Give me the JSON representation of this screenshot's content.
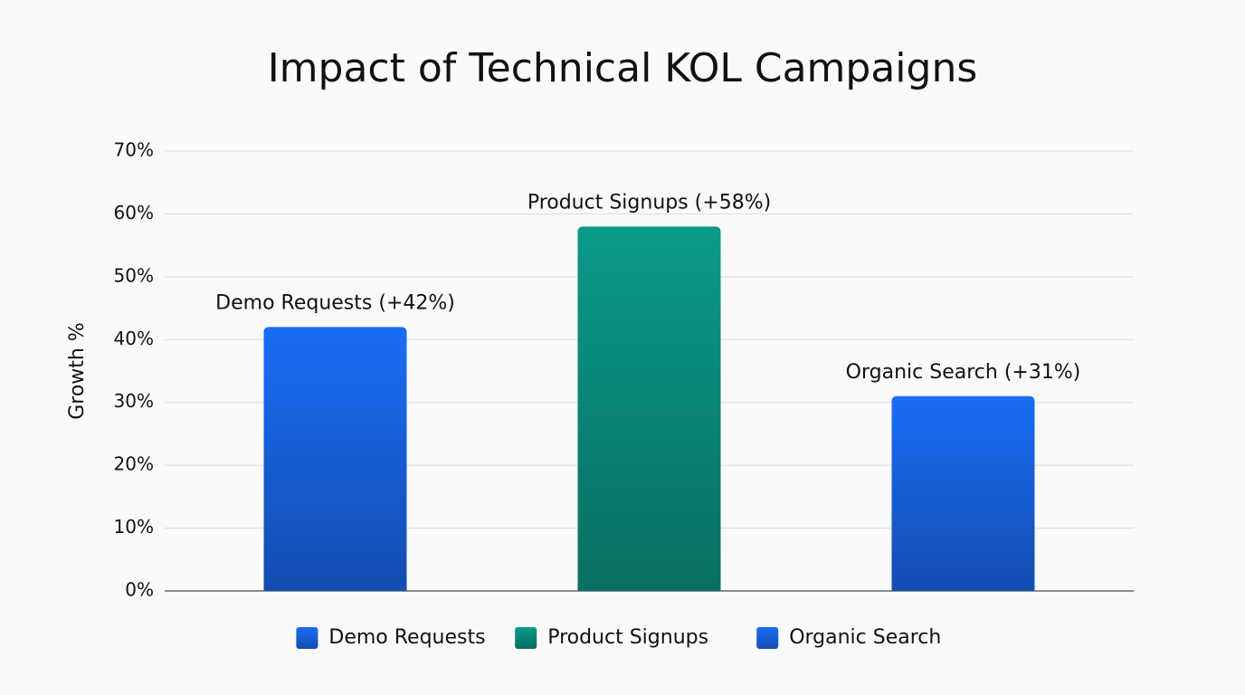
{
  "chart_data": {
    "type": "bar",
    "title": "Impact of Technical KOL Campaigns",
    "y_label": "Growth %",
    "categories": [
      "Demo Requests",
      "Product Signups",
      "Organic Search"
    ],
    "values": [
      42,
      58,
      31
    ],
    "value_labels": [
      "Demo Requests (+42%)",
      "Product Signups (+58%)",
      "Organic Search (+31%)"
    ],
    "colors": [
      "#1a6cf5",
      "#0a9a88",
      "#1a6cf5"
    ],
    "ylim": [
      0,
      70
    ],
    "yticks": [
      {
        "value": 0,
        "label": "0%"
      },
      {
        "value": 10,
        "label": "10%"
      },
      {
        "value": 20,
        "label": "20%"
      },
      {
        "value": 30,
        "label": "30%"
      },
      {
        "value": 40,
        "label": "40%"
      },
      {
        "value": 50,
        "label": "50%"
      },
      {
        "value": 60,
        "label": "60%"
      },
      {
        "value": 70,
        "label": "70%"
      }
    ],
    "grid": true,
    "legend": "bottom"
  }
}
